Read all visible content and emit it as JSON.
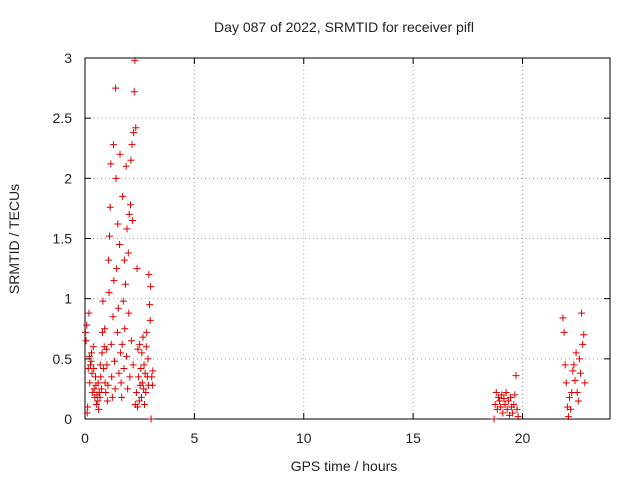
{
  "colors": {
    "series": "#dd0000",
    "grid": "#a0a0a0",
    "frame": "#000000"
  },
  "chart_data": {
    "type": "scatter",
    "title": "Day 087 of 2022, SRMTID for receiver pifl",
    "xlabel": "GPS time / hours",
    "ylabel": "SRMTID / TECUs",
    "xlim": [
      0,
      24
    ],
    "ylim": [
      0,
      3
    ],
    "xticks": [
      0,
      5,
      10,
      15,
      20
    ],
    "xtick_labels": [
      "0",
      "5",
      "10",
      "15",
      "20"
    ],
    "yticks": [
      0,
      0.5,
      1,
      1.5,
      2,
      2.5,
      3
    ],
    "ytick_labels": [
      "0",
      "0.5",
      "1",
      "1.5",
      "2",
      "2.5",
      "3"
    ],
    "grid": true,
    "marker": "+",
    "series": [
      {
        "name": "SRMTID",
        "points": [
          [
            0.02,
            0.72
          ],
          [
            0.05,
            0.65
          ],
          [
            0.08,
            0.78
          ],
          [
            0.1,
            0.05
          ],
          [
            0.12,
            0.1
          ],
          [
            0.15,
            0.42
          ],
          [
            0.18,
            0.88
          ],
          [
            0.2,
            0.52
          ],
          [
            0.22,
            0.3
          ],
          [
            0.25,
            0.45
          ],
          [
            0.28,
            0.48
          ],
          [
            0.3,
            0.55
          ],
          [
            0.32,
            0.38
          ],
          [
            0.35,
            0.22
          ],
          [
            0.38,
            0.6
          ],
          [
            0.4,
            0.42
          ],
          [
            0.42,
            0.25
          ],
          [
            0.45,
            0.18
          ],
          [
            0.48,
            0.35
          ],
          [
            0.5,
            0.28
          ],
          [
            0.52,
            0.12
          ],
          [
            0.55,
            0.2
          ],
          [
            0.58,
            0.15
          ],
          [
            0.6,
            0.3
          ],
          [
            0.62,
            0.08
          ],
          [
            0.65,
            0.22
          ],
          [
            0.68,
            0.18
          ],
          [
            0.7,
            0.45
          ],
          [
            0.72,
            0.35
          ],
          [
            0.75,
            0.25
          ],
          [
            0.78,
            0.55
          ],
          [
            0.8,
            0.72
          ],
          [
            0.82,
            0.98
          ],
          [
            0.85,
            0.42
          ],
          [
            0.88,
            0.6
          ],
          [
            0.9,
            0.75
          ],
          [
            0.92,
            0.3
          ],
          [
            0.95,
            0.22
          ],
          [
            0.98,
            0.58
          ],
          [
            1.0,
            0.45
          ],
          [
            1.02,
            0.15
          ],
          [
            1.05,
            0.28
          ],
          [
            1.08,
            1.32
          ],
          [
            1.1,
            1.05
          ],
          [
            1.12,
            1.52
          ],
          [
            1.15,
            1.76
          ],
          [
            1.18,
            2.12
          ],
          [
            1.2,
            0.62
          ],
          [
            1.22,
            0.35
          ],
          [
            1.25,
            0.18
          ],
          [
            1.28,
            0.85
          ],
          [
            1.3,
            2.28
          ],
          [
            1.32,
            1.15
          ],
          [
            1.35,
            0.48
          ],
          [
            1.38,
            0.25
          ],
          [
            1.4,
            2.75
          ],
          [
            1.42,
            2.0
          ],
          [
            1.45,
            1.25
          ],
          [
            1.48,
            0.72
          ],
          [
            1.5,
            1.62
          ],
          [
            1.52,
            0.92
          ],
          [
            1.55,
            0.38
          ],
          [
            1.58,
            1.45
          ],
          [
            1.6,
            2.2
          ],
          [
            1.62,
            0.55
          ],
          [
            1.65,
            0.3
          ],
          [
            1.68,
            0.18
          ],
          [
            1.7,
            0.62
          ],
          [
            1.72,
            1.85
          ],
          [
            1.75,
            0.98
          ],
          [
            1.78,
            0.42
          ],
          [
            1.8,
            1.32
          ],
          [
            1.82,
            0.75
          ],
          [
            1.85,
            1.12
          ],
          [
            1.88,
            2.1
          ],
          [
            1.9,
            0.52
          ],
          [
            1.92,
            1.58
          ],
          [
            1.95,
            0.25
          ],
          [
            1.98,
            1.38
          ],
          [
            2.0,
            0.88
          ],
          [
            2.02,
            1.7
          ],
          [
            2.05,
            0.35
          ],
          [
            2.08,
            1.78
          ],
          [
            2.1,
            2.15
          ],
          [
            2.12,
            0.65
          ],
          [
            2.15,
            2.28
          ],
          [
            2.18,
            1.65
          ],
          [
            2.2,
            0.45
          ],
          [
            2.22,
            2.38
          ],
          [
            2.25,
            2.72
          ],
          [
            2.28,
            2.98
          ],
          [
            2.3,
            0.12
          ],
          [
            2.32,
            2.42
          ],
          [
            2.35,
            0.22
          ],
          [
            2.38,
            1.25
          ],
          [
            2.4,
            0.1
          ],
          [
            2.42,
            0.58
          ],
          [
            2.45,
            0.35
          ],
          [
            2.48,
            0.15
          ],
          [
            2.5,
            0.62
          ],
          [
            2.52,
            0.28
          ],
          [
            2.55,
            0.42
          ],
          [
            2.58,
            0.18
          ],
          [
            2.6,
            0.55
          ],
          [
            2.62,
            0.3
          ],
          [
            2.65,
            0.68
          ],
          [
            2.68,
            0.25
          ],
          [
            2.7,
            0.45
          ],
          [
            2.72,
            0.12
          ],
          [
            2.75,
            0.38
          ],
          [
            2.78,
            0.22
          ],
          [
            2.8,
            0.6
          ],
          [
            2.82,
            0.72
          ],
          [
            2.85,
            0.35
          ],
          [
            2.88,
            0.5
          ],
          [
            2.9,
            0.28
          ],
          [
            2.92,
            1.2
          ],
          [
            2.95,
            0.95
          ],
          [
            2.98,
            0.82
          ],
          [
            3.0,
            1.1
          ],
          [
            3.02,
            0.0
          ],
          [
            3.05,
            0.35
          ],
          [
            3.08,
            0.28
          ],
          [
            3.1,
            0.4
          ],
          [
            18.7,
            0.0
          ],
          [
            18.75,
            0.12
          ],
          [
            18.8,
            0.22
          ],
          [
            18.85,
            0.08
          ],
          [
            18.9,
            0.18
          ],
          [
            18.95,
            0.15
          ],
          [
            19.0,
            0.1
          ],
          [
            19.05,
            0.2
          ],
          [
            19.1,
            0.05
          ],
          [
            19.15,
            0.17
          ],
          [
            19.2,
            0.12
          ],
          [
            19.25,
            0.22
          ],
          [
            19.3,
            0.08
          ],
          [
            19.35,
            0.15
          ],
          [
            19.4,
            0.03
          ],
          [
            19.45,
            0.18
          ],
          [
            19.5,
            0.1
          ],
          [
            19.55,
            0.05
          ],
          [
            19.6,
            0.12
          ],
          [
            19.65,
            0.2
          ],
          [
            19.7,
            0.36
          ],
          [
            19.75,
            0.08
          ],
          [
            19.8,
            0.02
          ],
          [
            21.85,
            0.84
          ],
          [
            21.9,
            0.72
          ],
          [
            21.95,
            0.45
          ],
          [
            22.0,
            0.3
          ],
          [
            22.05,
            0.1
          ],
          [
            22.1,
            0.02
          ],
          [
            22.15,
            0.18
          ],
          [
            22.2,
            0.08
          ],
          [
            22.25,
            0.22
          ],
          [
            22.3,
            0.4
          ],
          [
            22.35,
            0.45
          ],
          [
            22.4,
            0.32
          ],
          [
            22.45,
            0.55
          ],
          [
            22.5,
            0.22
          ],
          [
            22.55,
            0.15
          ],
          [
            22.6,
            0.5
          ],
          [
            22.65,
            0.38
          ],
          [
            22.7,
            0.88
          ],
          [
            22.75,
            0.62
          ],
          [
            22.8,
            0.7
          ],
          [
            22.85,
            0.3
          ]
        ]
      }
    ]
  }
}
